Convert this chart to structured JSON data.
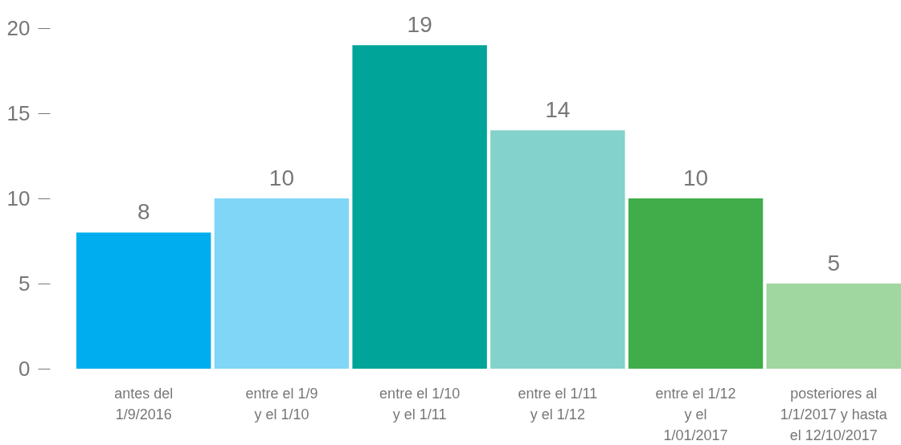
{
  "chart_data": {
    "type": "bar",
    "categories": [
      "antes del\n1/9/2016",
      "entre el 1/9\ny el 1/10",
      "entre el 1/10\ny el 1/11",
      "entre el 1/11\ny el 1/12",
      "entre el 1/12\ny el\n1/01/2017",
      "posteriores al\n1/1/2017 y hasta\nel 12/10/2017"
    ],
    "values": [
      8,
      10,
      19,
      14,
      10,
      5
    ],
    "colors": [
      "#00aeef",
      "#80d6f7",
      "#00a499",
      "#83d2cb",
      "#40ad4a",
      "#a0d6a0"
    ],
    "ylim": [
      0,
      20
    ],
    "yticks": [
      0,
      5,
      10,
      15,
      20
    ],
    "data_labels": true,
    "grid": false
  }
}
